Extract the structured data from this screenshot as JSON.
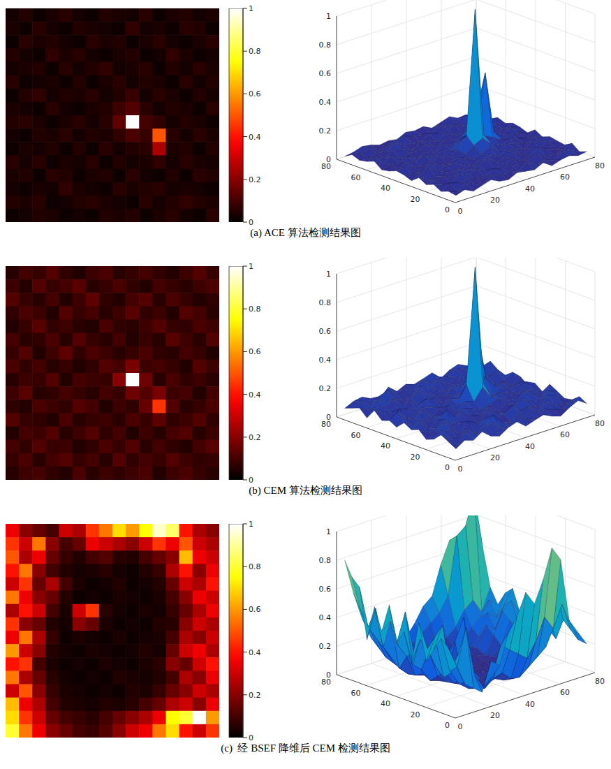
{
  "chart_data": [
    {
      "type": "heatmap",
      "title": "(a) ACE 算法检测结果图",
      "cells": [
        [
          0.03,
          0.05,
          0.02,
          0.04,
          0.06,
          0.03,
          0.02,
          0.05,
          0.04,
          0.03,
          0.06,
          0.02,
          0.04,
          0.05,
          0.03,
          0.04
        ],
        [
          0.04,
          0.02,
          0.06,
          0.03,
          0.02,
          0.05,
          0.04,
          0.03,
          0.02,
          0.07,
          0.03,
          0.04,
          0.02,
          0.06,
          0.05,
          0.02
        ],
        [
          0.02,
          0.06,
          0.04,
          0.05,
          0.03,
          0.02,
          0.06,
          0.04,
          0.05,
          0.02,
          0.04,
          0.06,
          0.03,
          0.02,
          0.04,
          0.06
        ],
        [
          0.05,
          0.03,
          0.02,
          0.07,
          0.04,
          0.06,
          0.03,
          0.02,
          0.04,
          0.05,
          0.02,
          0.03,
          0.07,
          0.04,
          0.02,
          0.03
        ],
        [
          0.03,
          0.04,
          0.05,
          0.02,
          0.06,
          0.03,
          0.05,
          0.07,
          0.03,
          0.04,
          0.06,
          0.02,
          0.05,
          0.03,
          0.06,
          0.04
        ],
        [
          0.06,
          0.02,
          0.03,
          0.04,
          0.02,
          0.05,
          0.02,
          0.04,
          0.06,
          0.03,
          0.05,
          0.04,
          0.02,
          0.06,
          0.03,
          0.05
        ],
        [
          0.02,
          0.05,
          0.07,
          0.03,
          0.05,
          0.04,
          0.06,
          0.03,
          0.05,
          0.08,
          0.03,
          0.06,
          0.04,
          0.02,
          0.05,
          0.03
        ],
        [
          0.04,
          0.03,
          0.02,
          0.06,
          0.03,
          0.02,
          0.04,
          0.05,
          0.09,
          0.12,
          0.06,
          0.03,
          0.05,
          0.04,
          0.02,
          0.06
        ],
        [
          0.05,
          0.06,
          0.04,
          0.02,
          0.04,
          0.06,
          0.03,
          0.06,
          0.14,
          1,
          0.1,
          0.07,
          0.03,
          0.05,
          0.04,
          0.02
        ],
        [
          0.03,
          0.02,
          0.05,
          0.04,
          0.06,
          0.03,
          0.05,
          0.04,
          0.07,
          0.11,
          0.08,
          0.5,
          0.06,
          0.03,
          0.06,
          0.04
        ],
        [
          0.02,
          0.04,
          0.03,
          0.05,
          0.02,
          0.05,
          0.02,
          0.06,
          0.03,
          0.05,
          0.06,
          0.25,
          0.04,
          0.05,
          0.02,
          0.05
        ],
        [
          0.06,
          0.03,
          0.06,
          0.02,
          0.04,
          0.03,
          0.06,
          0.02,
          0.05,
          0.03,
          0.04,
          0.07,
          0.03,
          0.06,
          0.04,
          0.03
        ],
        [
          0.04,
          0.05,
          0.02,
          0.06,
          0.05,
          0.02,
          0.04,
          0.05,
          0.02,
          0.06,
          0.03,
          0.02,
          0.05,
          0.02,
          0.06,
          0.05
        ],
        [
          0.03,
          0.02,
          0.04,
          0.03,
          0.07,
          0.04,
          0.03,
          0.02,
          0.06,
          0.04,
          0.05,
          0.06,
          0.03,
          0.04,
          0.03,
          0.02
        ],
        [
          0.05,
          0.04,
          0.06,
          0.02,
          0.03,
          0.05,
          0.06,
          0.04,
          0.03,
          0.02,
          0.06,
          0.03,
          0.05,
          0.07,
          0.05,
          0.04
        ],
        [
          0.02,
          0.03,
          0.05,
          0.04,
          0.02,
          0.03,
          0.02,
          0.05,
          0.04,
          0.05,
          0.02,
          0.04,
          0.06,
          0.03,
          0.02,
          0.06
        ]
      ],
      "colorbar_range": [
        0,
        1
      ],
      "colorbar_ticks": [
        0,
        0.2,
        0.4,
        0.6,
        0.8,
        1
      ],
      "xlim": [
        0,
        80
      ],
      "xticks": [
        0,
        20,
        40,
        60,
        80
      ],
      "ylim": [
        0,
        80
      ],
      "yticks": [
        0,
        20,
        40,
        60,
        80
      ],
      "zlim": [
        0,
        1
      ],
      "zticks": [
        0,
        0.2,
        0.4,
        0.6,
        0.8,
        1
      ]
    },
    {
      "type": "heatmap",
      "title": "(b) CEM 算法检测结果图",
      "cells": [
        [
          0.06,
          0.1,
          0.08,
          0.12,
          0.07,
          0.05,
          0.09,
          0.11,
          0.06,
          0.08,
          0.1,
          0.07,
          0.05,
          0.09,
          0.12,
          0.08
        ],
        [
          0.09,
          0.05,
          0.12,
          0.08,
          0.1,
          0.13,
          0.06,
          0.08,
          0.11,
          0.07,
          0.05,
          0.1,
          0.08,
          0.06,
          0.09,
          0.11
        ],
        [
          0.12,
          0.08,
          0.06,
          0.1,
          0.05,
          0.09,
          0.14,
          0.07,
          0.05,
          0.1,
          0.12,
          0.06,
          0.11,
          0.08,
          0.05,
          0.07
        ],
        [
          0.07,
          0.11,
          0.09,
          0.05,
          0.12,
          0.08,
          0.1,
          0.06,
          0.09,
          0.13,
          0.07,
          0.09,
          0.05,
          0.12,
          0.1,
          0.06
        ],
        [
          0.05,
          0.08,
          0.13,
          0.07,
          0.09,
          0.06,
          0.05,
          0.11,
          0.07,
          0.06,
          0.09,
          0.12,
          0.08,
          0.07,
          0.11,
          0.09
        ],
        [
          0.1,
          0.06,
          0.07,
          0.11,
          0.06,
          0.12,
          0.08,
          0.06,
          0.1,
          0.05,
          0.08,
          0.06,
          0.13,
          0.09,
          0.06,
          0.12
        ],
        [
          0.08,
          0.12,
          0.05,
          0.09,
          0.14,
          0.07,
          0.11,
          0.09,
          0.06,
          0.08,
          0.11,
          0.07,
          0.06,
          0.1,
          0.08,
          0.05
        ],
        [
          0.11,
          0.07,
          0.1,
          0.06,
          0.08,
          0.05,
          0.07,
          0.12,
          0.1,
          0.18,
          0.09,
          0.1,
          0.08,
          0.05,
          0.12,
          0.09
        ],
        [
          0.06,
          0.09,
          0.08,
          0.12,
          0.05,
          0.1,
          0.09,
          0.08,
          0.2,
          1,
          0.16,
          0.06,
          0.11,
          0.07,
          0.09,
          0.06
        ],
        [
          0.09,
          0.13,
          0.06,
          0.07,
          0.1,
          0.08,
          0.06,
          0.1,
          0.08,
          0.16,
          0.12,
          0.18,
          0.09,
          0.1,
          0.05,
          0.1
        ],
        [
          0.07,
          0.05,
          0.11,
          0.09,
          0.07,
          0.12,
          0.1,
          0.05,
          0.09,
          0.07,
          0.15,
          0.45,
          0.12,
          0.06,
          0.08,
          0.11
        ],
        [
          0.12,
          0.08,
          0.07,
          0.05,
          0.11,
          0.06,
          0.08,
          0.09,
          0.06,
          0.11,
          0.08,
          0.14,
          0.07,
          0.09,
          0.12,
          0.07
        ],
        [
          0.05,
          0.1,
          0.09,
          0.12,
          0.06,
          0.09,
          0.12,
          0.07,
          0.1,
          0.05,
          0.09,
          0.06,
          0.1,
          0.12,
          0.06,
          0.09
        ],
        [
          0.1,
          0.07,
          0.12,
          0.08,
          0.09,
          0.05,
          0.07,
          0.11,
          0.08,
          0.12,
          0.06,
          0.1,
          0.07,
          0.05,
          0.1,
          0.13
        ],
        [
          0.08,
          0.11,
          0.06,
          0.1,
          0.12,
          0.08,
          0.1,
          0.06,
          0.12,
          0.07,
          0.1,
          0.08,
          0.12,
          0.09,
          0.07,
          0.08
        ],
        [
          0.06,
          0.09,
          0.1,
          0.07,
          0.05,
          0.11,
          0.06,
          0.09,
          0.07,
          0.09,
          0.11,
          0.05,
          0.09,
          0.11,
          0.08,
          0.06
        ]
      ],
      "colorbar_range": [
        0,
        1
      ],
      "colorbar_ticks": [
        0,
        0.2,
        0.4,
        0.6,
        0.8,
        1
      ],
      "xlim": [
        0,
        80
      ],
      "xticks": [
        0,
        20,
        40,
        60,
        80
      ],
      "ylim": [
        0,
        80
      ],
      "yticks": [
        0,
        20,
        40,
        60,
        80
      ],
      "zlim": [
        0,
        1
      ],
      "zticks": [
        0,
        0.2,
        0.4,
        0.6,
        0.8,
        1
      ]
    },
    {
      "type": "heatmap",
      "title": "(c)  经 BSEF 降维后 CEM 检测结果图",
      "cells": [
        [
          0.35,
          0.2,
          0.15,
          0.1,
          0.3,
          0.25,
          0.45,
          0.55,
          0.7,
          0.6,
          0.75,
          0.95,
          0.85,
          0.4,
          0.25,
          0.2
        ],
        [
          0.45,
          0.3,
          0.55,
          0.2,
          0.1,
          0.15,
          0.35,
          0.3,
          0.25,
          0.2,
          0.3,
          0.45,
          0.35,
          0.5,
          0.3,
          0.25
        ],
        [
          0.5,
          0.25,
          0.35,
          0.15,
          0.08,
          0.05,
          0.1,
          0.12,
          0.06,
          0.05,
          0.1,
          0.15,
          0.2,
          0.65,
          0.35,
          0.3
        ],
        [
          0.4,
          0.55,
          0.2,
          0.1,
          0.05,
          0.03,
          0.04,
          0.06,
          0.03,
          0.02,
          0.05,
          0.08,
          0.25,
          0.4,
          0.2,
          0.35
        ],
        [
          0.3,
          0.45,
          0.15,
          0.25,
          0.1,
          0.04,
          0.02,
          0.03,
          0.05,
          0.02,
          0.03,
          0.05,
          0.15,
          0.3,
          0.25,
          0.4
        ],
        [
          0.55,
          0.35,
          0.2,
          0.15,
          0.05,
          0.02,
          0.03,
          0.02,
          0.04,
          0.03,
          0.02,
          0.04,
          0.1,
          0.2,
          0.35,
          0.3
        ],
        [
          0.25,
          0.4,
          0.3,
          0.1,
          0.04,
          0.3,
          0.45,
          0.06,
          0.03,
          0.02,
          0.04,
          0.03,
          0.08,
          0.15,
          0.25,
          0.35
        ],
        [
          0.45,
          0.2,
          0.15,
          0.05,
          0.03,
          0.2,
          0.15,
          0.04,
          0.02,
          0.03,
          0.02,
          0.05,
          0.06,
          0.2,
          0.3,
          0.25
        ],
        [
          0.35,
          0.55,
          0.25,
          0.08,
          0.02,
          0.04,
          0.03,
          0.02,
          0.04,
          0.02,
          0.03,
          0.04,
          0.1,
          0.25,
          0.2,
          0.3
        ],
        [
          0.6,
          0.3,
          0.2,
          0.05,
          0.03,
          0.02,
          0.04,
          0.03,
          0.02,
          0.03,
          0.05,
          0.03,
          0.15,
          0.3,
          0.35,
          0.25
        ],
        [
          0.4,
          0.45,
          0.1,
          0.04,
          0.02,
          0.03,
          0.02,
          0.04,
          0.03,
          0.02,
          0.04,
          0.06,
          0.2,
          0.15,
          0.3,
          0.4
        ],
        [
          0.55,
          0.25,
          0.15,
          0.06,
          0.03,
          0.02,
          0.03,
          0.02,
          0.05,
          0.04,
          0.03,
          0.05,
          0.1,
          0.25,
          0.2,
          0.35
        ],
        [
          0.3,
          0.5,
          0.2,
          0.08,
          0.04,
          0.03,
          0.02,
          0.03,
          0.02,
          0.05,
          0.04,
          0.08,
          0.15,
          0.2,
          0.3,
          0.25
        ],
        [
          0.65,
          0.35,
          0.25,
          0.1,
          0.05,
          0.04,
          0.03,
          0.05,
          0.04,
          0.06,
          0.1,
          0.15,
          0.25,
          0.3,
          0.2,
          0.35
        ],
        [
          0.7,
          0.45,
          0.3,
          0.15,
          0.1,
          0.08,
          0.06,
          0.1,
          0.15,
          0.2,
          0.25,
          0.35,
          0.75,
          0.8,
          1,
          0.6
        ],
        [
          0.8,
          0.55,
          0.35,
          0.2,
          0.15,
          0.1,
          0.08,
          0.12,
          0.2,
          0.3,
          0.35,
          0.55,
          0.7,
          0.4,
          0.3,
          0.45
        ]
      ],
      "colorbar_range": [
        0,
        1
      ],
      "colorbar_ticks": [
        0,
        0.2,
        0.4,
        0.6,
        0.8,
        1
      ],
      "xlim": [
        0,
        80
      ],
      "xticks": [
        0,
        20,
        40,
        60,
        80
      ],
      "ylim": [
        0,
        80
      ],
      "yticks": [
        0,
        20,
        40,
        60,
        80
      ],
      "zlim": [
        0,
        1
      ],
      "zticks": [
        0,
        0.2,
        0.4,
        0.6,
        0.8,
        1
      ]
    }
  ]
}
